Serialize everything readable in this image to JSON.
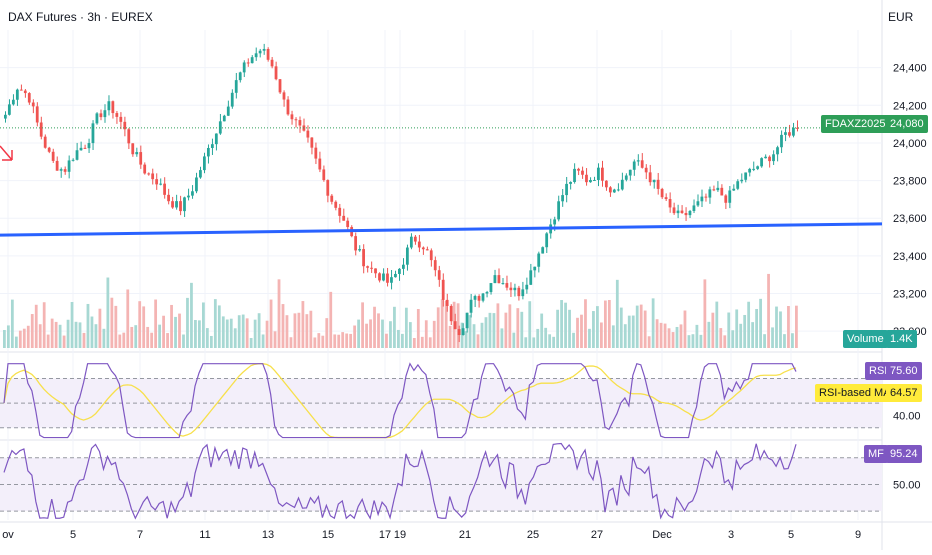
{
  "header": {
    "title": "DAX Futures · 3h · EUREX",
    "currency": "EUR"
  },
  "chart_data": [
    {
      "type": "candlestick",
      "symbol": "FDAXZ2025",
      "last_price": "24,080",
      "y_ticks": [
        "24,400",
        "24,200",
        "24,000",
        "23,800",
        "23,600",
        "23,400",
        "23,200",
        "23,000"
      ],
      "ylim": [
        22900,
        24600
      ],
      "x_ticks": [
        "ov",
        "5",
        "7",
        "11",
        "13",
        "15",
        "17",
        "19",
        "21",
        "25",
        "27",
        "Dec",
        "3",
        "5",
        "9"
      ],
      "close_path": [
        24150,
        24300,
        24250,
        24050,
        23900,
        23850,
        23950,
        24000,
        24150,
        24200,
        24100,
        23950,
        23850,
        23800,
        23700,
        23650,
        23750,
        23900,
        24050,
        24200,
        24350,
        24450,
        24500,
        24400,
        24200,
        24100,
        24000,
        23850,
        23700,
        23600,
        23450,
        23350,
        23300,
        23250,
        23350,
        23500,
        23450,
        23300,
        23100,
        23000,
        23150,
        23200,
        23300,
        23250,
        23200,
        23300,
        23450,
        23600,
        23750,
        23850,
        23800,
        23850,
        23750,
        23800,
        23900,
        23850,
        23750,
        23650,
        23600,
        23650,
        23700,
        23750,
        23700,
        23800,
        23850,
        23900,
        23950,
        24050,
        24080
      ],
      "volume_label": "Volume",
      "volume_value": "1.4K",
      "trendline": {
        "start": 23510,
        "end": 23570,
        "color": "#2962ff"
      }
    },
    {
      "type": "line",
      "name": "RSI",
      "value": "75.60",
      "ma_name": "RSI-based MA",
      "ma_value": "64.57",
      "y_ticks": [
        "40.00"
      ],
      "ylim": [
        20,
        85
      ],
      "band": [
        30,
        70
      ]
    },
    {
      "type": "line",
      "name": "MF",
      "value": "95.24",
      "y_ticks": [
        "50.00"
      ],
      "ylim": [
        10,
        100
      ],
      "band": [
        20,
        80
      ]
    }
  ],
  "colors": {
    "up": "#26a69a",
    "down": "#ef5350",
    "grid": "#f0f3fa",
    "line_indicator": "#7e57c2",
    "ma": "#f7e04b"
  }
}
